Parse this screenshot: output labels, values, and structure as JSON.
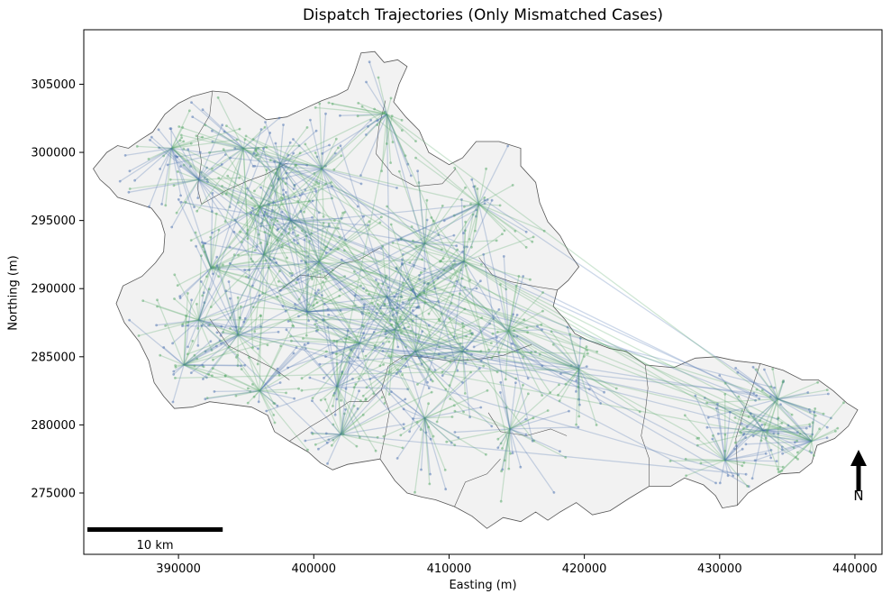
{
  "title": "Dispatch Trajectories (Only Mismatched Cases)",
  "xlabel": "Easting (m)",
  "ylabel": "Northing (m)",
  "scale_bar_label": "10 km",
  "north_label": "N",
  "colors": {
    "boundary_fill": "#f2f2f2",
    "boundary_stroke": "#555555",
    "trajectory_blue": "#4c72b0",
    "trajectory_green": "#55a868"
  },
  "chart_data": {
    "type": "map",
    "x_ticks": [
      390000,
      400000,
      410000,
      420000,
      430000,
      440000
    ],
    "y_ticks": [
      275000,
      280000,
      285000,
      290000,
      295000,
      300000,
      305000
    ],
    "x_tick_labels": [
      "390000",
      "400000",
      "410000",
      "420000",
      "430000",
      "440000"
    ],
    "y_tick_labels": [
      "275000",
      "280000",
      "285000",
      "290000",
      "295000",
      "300000",
      "305000"
    ],
    "xlim": [
      383000,
      442000
    ],
    "ylim": [
      270500,
      309000
    ],
    "series": [
      {
        "color": "trajectory_blue"
      },
      {
        "color": "trajectory_green"
      }
    ],
    "dispatch_hubs": [
      [
        391500,
        298000
      ],
      [
        394800,
        300300
      ],
      [
        396000,
        296000
      ],
      [
        397500,
        299200
      ],
      [
        400600,
        298800
      ],
      [
        398300,
        295000
      ],
      [
        396300,
        292500
      ],
      [
        392400,
        291500
      ],
      [
        391500,
        287700
      ],
      [
        394400,
        286600
      ],
      [
        390400,
        284400
      ],
      [
        396000,
        282500
      ],
      [
        399500,
        288300
      ],
      [
        400400,
        292000
      ],
      [
        401700,
        282800
      ],
      [
        403400,
        286000
      ],
      [
        405400,
        289400
      ],
      [
        406000,
        287000
      ],
      [
        407600,
        289400
      ],
      [
        408200,
        293300
      ],
      [
        407500,
        285400
      ],
      [
        408200,
        280500
      ],
      [
        411100,
        292000
      ],
      [
        412200,
        296200
      ],
      [
        411000,
        285400
      ],
      [
        414400,
        286900
      ],
      [
        419600,
        284100
      ],
      [
        414500,
        279700
      ],
      [
        433200,
        279600
      ],
      [
        434300,
        281900
      ],
      [
        436800,
        278800
      ],
      [
        430400,
        277400
      ],
      [
        402000,
        279300
      ],
      [
        405400,
        302800
      ],
      [
        389500,
        300300
      ]
    ],
    "boundary": [
      [
        383700,
        298800
      ],
      [
        384700,
        300000
      ],
      [
        385500,
        300500
      ],
      [
        386300,
        300300
      ],
      [
        387300,
        301000
      ],
      [
        388100,
        301500
      ],
      [
        389000,
        302800
      ],
      [
        390000,
        303600
      ],
      [
        391000,
        304100
      ],
      [
        392500,
        304500
      ],
      [
        393600,
        304400
      ],
      [
        394700,
        303700
      ],
      [
        395600,
        303000
      ],
      [
        396500,
        302400
      ],
      [
        398000,
        302600
      ],
      [
        399500,
        303300
      ],
      [
        400600,
        303800
      ],
      [
        401700,
        304200
      ],
      [
        402500,
        304600
      ],
      [
        403000,
        305800
      ],
      [
        403500,
        307300
      ],
      [
        404500,
        307400
      ],
      [
        405200,
        306600
      ],
      [
        406200,
        306800
      ],
      [
        406900,
        306300
      ],
      [
        406300,
        305000
      ],
      [
        405900,
        303700
      ],
      [
        406800,
        302600
      ],
      [
        407800,
        301600
      ],
      [
        408500,
        300000
      ],
      [
        410000,
        299100
      ],
      [
        411000,
        299600
      ],
      [
        412000,
        300800
      ],
      [
        413700,
        300800
      ],
      [
        415300,
        300300
      ],
      [
        415300,
        299000
      ],
      [
        416400,
        297800
      ],
      [
        416700,
        296300
      ],
      [
        417300,
        294900
      ],
      [
        418200,
        293900
      ],
      [
        418900,
        292600
      ],
      [
        419600,
        291600
      ],
      [
        418800,
        290600
      ],
      [
        418000,
        289900
      ],
      [
        417700,
        288700
      ],
      [
        418600,
        287700
      ],
      [
        419300,
        286700
      ],
      [
        420300,
        286200
      ],
      [
        421900,
        285600
      ],
      [
        423100,
        285400
      ],
      [
        424500,
        284400
      ],
      [
        426600,
        284200
      ],
      [
        428200,
        284900
      ],
      [
        429800,
        285000
      ],
      [
        431200,
        284700
      ],
      [
        433000,
        284500
      ],
      [
        434700,
        284000
      ],
      [
        436100,
        283300
      ],
      [
        437300,
        283300
      ],
      [
        438400,
        282500
      ],
      [
        439400,
        281600
      ],
      [
        440200,
        281100
      ],
      [
        439500,
        279900
      ],
      [
        438500,
        279000
      ],
      [
        437200,
        278500
      ],
      [
        436800,
        277200
      ],
      [
        435900,
        276500
      ],
      [
        434500,
        276400
      ],
      [
        433200,
        275700
      ],
      [
        432100,
        275000
      ],
      [
        431300,
        274100
      ],
      [
        430200,
        273900
      ],
      [
        429700,
        274800
      ],
      [
        428800,
        275600
      ],
      [
        427400,
        276100
      ],
      [
        426400,
        275500
      ],
      [
        424800,
        275500
      ],
      [
        423300,
        274600
      ],
      [
        421900,
        273700
      ],
      [
        420600,
        273400
      ],
      [
        419400,
        274300
      ],
      [
        418200,
        273600
      ],
      [
        417300,
        273000
      ],
      [
        416400,
        273600
      ],
      [
        415300,
        272900
      ],
      [
        414000,
        273200
      ],
      [
        412800,
        272400
      ],
      [
        411700,
        273300
      ],
      [
        410400,
        274000
      ],
      [
        409000,
        274500
      ],
      [
        408000,
        274700
      ],
      [
        406900,
        275000
      ],
      [
        406000,
        275900
      ],
      [
        404900,
        277500
      ],
      [
        403700,
        277300
      ],
      [
        402500,
        277100
      ],
      [
        401400,
        276700
      ],
      [
        400500,
        277200
      ],
      [
        399600,
        278000
      ],
      [
        398200,
        278800
      ],
      [
        397100,
        279500
      ],
      [
        396600,
        280700
      ],
      [
        395400,
        281300
      ],
      [
        393900,
        281500
      ],
      [
        392300,
        281700
      ],
      [
        391000,
        281300
      ],
      [
        389700,
        281200
      ],
      [
        388900,
        282100
      ],
      [
        388200,
        283100
      ],
      [
        387800,
        284700
      ],
      [
        387100,
        286100
      ],
      [
        386000,
        287500
      ],
      [
        385400,
        288900
      ],
      [
        385900,
        290200
      ],
      [
        387300,
        290900
      ],
      [
        388300,
        291900
      ],
      [
        388900,
        292700
      ],
      [
        389000,
        294000
      ],
      [
        388700,
        295000
      ],
      [
        388000,
        295900
      ],
      [
        386800,
        296300
      ],
      [
        385500,
        296700
      ],
      [
        384900,
        297400
      ],
      [
        384200,
        298000
      ]
    ],
    "internal_boundaries": [
      [
        [
          402600,
          281700
        ],
        [
          404000,
          281700
        ],
        [
          405000,
          282600
        ],
        [
          405500,
          284300
        ],
        [
          406700,
          285100
        ],
        [
          408000,
          285000
        ],
        [
          410000,
          284700
        ],
        [
          412000,
          284800
        ],
        [
          414000,
          285100
        ],
        [
          416100,
          285900
        ]
      ],
      [
        [
          397400,
          289800
        ],
        [
          399000,
          291000
        ],
        [
          400700,
          290800
        ],
        [
          402000,
          291800
        ],
        [
          403300,
          292100
        ],
        [
          404900,
          293000
        ]
      ],
      [
        [
          392300,
          287800
        ],
        [
          393700,
          285800
        ],
        [
          395500,
          284900
        ],
        [
          397100,
          284100
        ],
        [
          398200,
          283300
        ]
      ],
      [
        [
          412900,
          280900
        ],
        [
          413800,
          279500
        ],
        [
          415700,
          279200
        ],
        [
          417500,
          279700
        ],
        [
          418700,
          279200
        ]
      ],
      [
        [
          410400,
          274000
        ],
        [
          411200,
          275800
        ],
        [
          412800,
          276400
        ],
        [
          413800,
          277500
        ]
      ],
      [
        [
          398200,
          278800
        ],
        [
          399800,
          279900
        ],
        [
          401000,
          280600
        ],
        [
          402600,
          281700
        ]
      ],
      [
        [
          405300,
          303800
        ],
        [
          404800,
          301800
        ],
        [
          404600,
          299900
        ],
        [
          405800,
          298400
        ],
        [
          407500,
          297500
        ],
        [
          409500,
          297700
        ],
        [
          410500,
          298800
        ]
      ],
      [
        [
          391700,
          296200
        ],
        [
          393500,
          297200
        ],
        [
          395100,
          297900
        ],
        [
          396500,
          298400
        ],
        [
          398000,
          299200
        ]
      ],
      [
        [
          418000,
          289900
        ],
        [
          416700,
          290100
        ],
        [
          414600,
          290500
        ],
        [
          413200,
          291000
        ],
        [
          412200,
          292300
        ]
      ],
      [
        [
          424500,
          284400
        ],
        [
          424700,
          282700
        ],
        [
          424500,
          280900
        ],
        [
          424200,
          279200
        ],
        [
          424800,
          277500
        ],
        [
          424800,
          275500
        ]
      ],
      [
        [
          433000,
          284500
        ],
        [
          432400,
          282700
        ],
        [
          431700,
          280700
        ],
        [
          431200,
          279000
        ],
        [
          431300,
          277000
        ],
        [
          431300,
          274100
        ]
      ],
      [
        [
          392500,
          304500
        ],
        [
          392300,
          302700
        ],
        [
          391400,
          301200
        ],
        [
          391700,
          299300
        ],
        [
          391400,
          297400
        ],
        [
          391700,
          296200
        ]
      ],
      [
        [
          404900,
          277500
        ],
        [
          405300,
          279400
        ],
        [
          405600,
          281000
        ],
        [
          405000,
          282600
        ]
      ]
    ]
  }
}
